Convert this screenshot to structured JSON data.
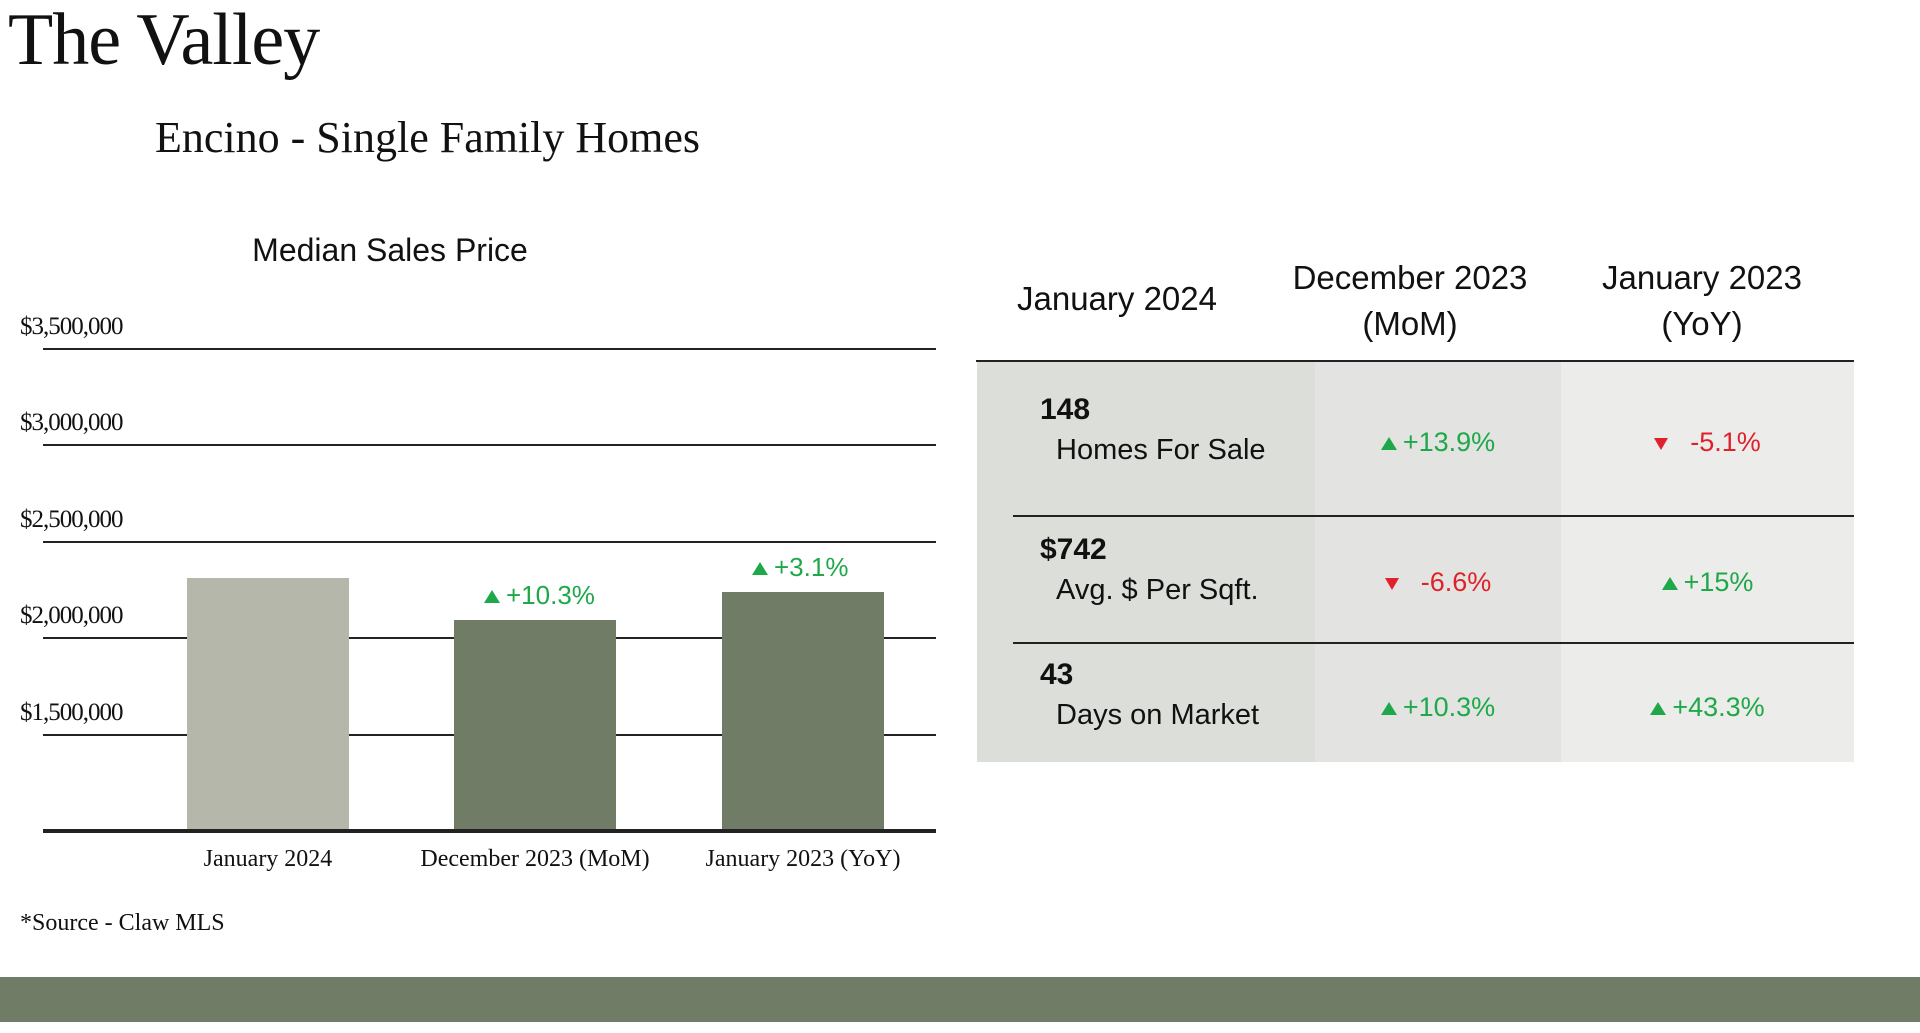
{
  "title": "The Valley",
  "subtitle": "Encino - Single Family Homes",
  "source": "*Source - Claw MLS",
  "colors": {
    "current_bar": "#b5b7aa",
    "compare_bar": "#707c66",
    "up": "#1fa84a",
    "down": "#e0202a",
    "footer": "#707c66"
  },
  "chart_data": {
    "type": "bar",
    "title": "Median Sales Price",
    "categories": [
      "January 2024",
      "December 2023 (MoM)",
      "January 2023 (YoY)"
    ],
    "values": [
      2310000,
      2095000,
      2240000
    ],
    "change_labels": [
      "",
      "+10.3%",
      "+3.1%"
    ],
    "yticks": [
      "$1,500,000",
      "$2,000,000",
      "$2,500,000",
      "$3,000,000",
      "$3,500,000"
    ],
    "ytick_values": [
      1500000,
      2000000,
      2500000,
      3000000,
      3500000
    ],
    "ylim": [
      1000000,
      3500000
    ],
    "grid": true
  },
  "table": {
    "headers": {
      "c1": "January 2024",
      "c2a": "December 2023",
      "c2b": "(MoM)",
      "c3a": "January 2023",
      "c3b": "(YoY)"
    },
    "rows": [
      {
        "value": "148",
        "label": "Homes For Sale",
        "mom": "+13.9%",
        "mom_dir": "up",
        "yoy": "-5.1%",
        "yoy_dir": "down"
      },
      {
        "value": "$742",
        "label": "Avg. $ Per Sqft.",
        "mom": "-6.6%",
        "mom_dir": "down",
        "yoy": "+15%",
        "yoy_dir": "up"
      },
      {
        "value": "43",
        "label": "Days on Market",
        "mom": "+10.3%",
        "mom_dir": "up",
        "yoy": "+43.3%",
        "yoy_dir": "up"
      }
    ]
  }
}
